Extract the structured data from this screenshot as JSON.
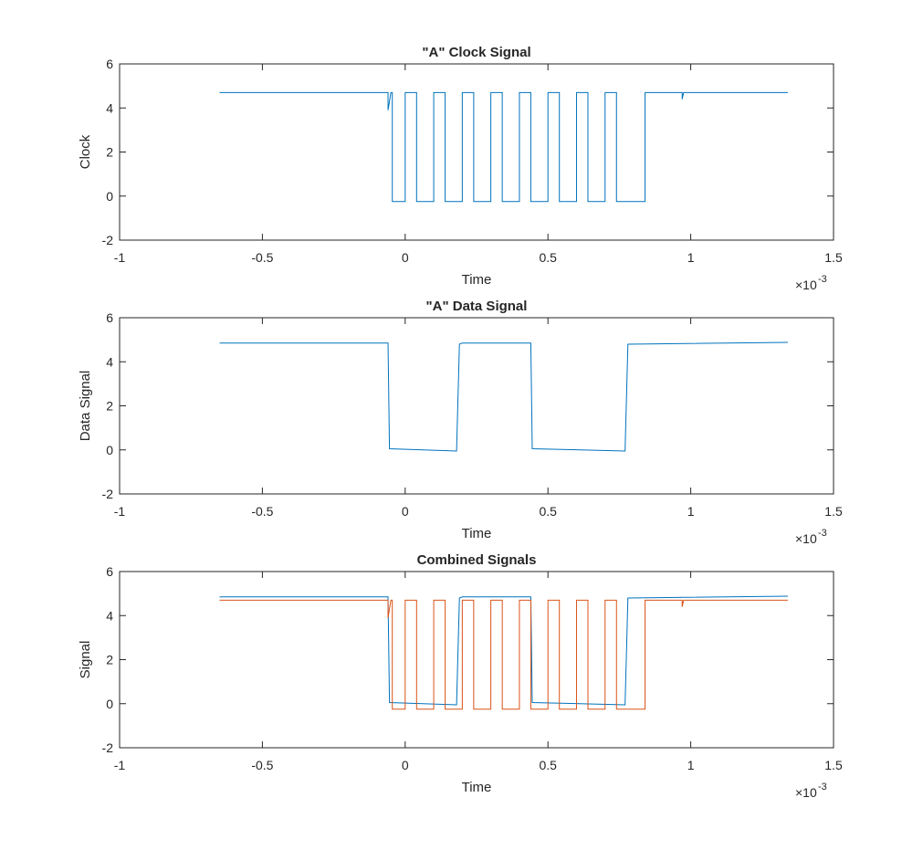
{
  "chart_data": [
    {
      "type": "line",
      "title": "\"A\" Clock Signal",
      "xlabel": "Time",
      "ylabel": "Clock",
      "x_scale": {
        "base": "×10",
        "exponent": "-3"
      },
      "xlim": [
        -1,
        1.5
      ],
      "ylim": [
        -2,
        6
      ],
      "xticks": [
        -1,
        -0.5,
        0,
        0.5,
        1,
        1.5
      ],
      "yticks": [
        -2,
        0,
        2,
        4,
        6
      ],
      "series": [
        {
          "color": "#0072bd",
          "x": [
            -0.65,
            -0.06,
            -0.06,
            -0.05,
            -0.045,
            -0.045,
            0,
            0,
            0.04,
            0.04,
            0.1,
            0.1,
            0.14,
            0.14,
            0.2,
            0.2,
            0.24,
            0.24,
            0.3,
            0.3,
            0.34,
            0.34,
            0.4,
            0.4,
            0.44,
            0.44,
            0.5,
            0.5,
            0.54,
            0.54,
            0.6,
            0.6,
            0.64,
            0.64,
            0.7,
            0.7,
            0.74,
            0.74,
            0.84,
            0.84,
            0.97,
            0.97,
            0.975,
            1.34
          ],
          "values": [
            4.7,
            4.7,
            3.9,
            4.7,
            4.7,
            -0.25,
            -0.25,
            4.7,
            4.7,
            -0.25,
            -0.25,
            4.7,
            4.7,
            -0.25,
            -0.25,
            4.7,
            4.7,
            -0.25,
            -0.25,
            4.7,
            4.7,
            -0.25,
            -0.25,
            4.7,
            4.7,
            -0.25,
            -0.25,
            4.7,
            4.7,
            -0.25,
            -0.25,
            4.7,
            4.7,
            -0.25,
            -0.25,
            4.7,
            4.7,
            -0.25,
            -0.25,
            4.7,
            4.7,
            4.4,
            4.7,
            4.7
          ]
        }
      ]
    },
    {
      "type": "line",
      "title": "\"A\" Data Signal",
      "xlabel": "Time",
      "ylabel": "Data Signal",
      "x_scale": {
        "base": "×10",
        "exponent": "-3"
      },
      "xlim": [
        -1,
        1.5
      ],
      "ylim": [
        -2,
        6
      ],
      "xticks": [
        -1,
        -0.5,
        0,
        0.5,
        1,
        1.5
      ],
      "yticks": [
        -2,
        0,
        2,
        4,
        6
      ],
      "series": [
        {
          "color": "#0072bd",
          "x": [
            -0.65,
            -0.06,
            -0.055,
            0.18,
            0.19,
            0.2,
            0.44,
            0.445,
            0.77,
            0.78,
            1.34
          ],
          "values": [
            4.85,
            4.85,
            0.05,
            -0.05,
            4.8,
            4.85,
            4.85,
            0.05,
            -0.05,
            4.8,
            4.88
          ]
        }
      ]
    },
    {
      "type": "line",
      "title": "Combined Signals",
      "xlabel": "Time",
      "ylabel": "Signal",
      "x_scale": {
        "base": "×10",
        "exponent": "-3"
      },
      "xlim": [
        -1,
        1.5
      ],
      "ylim": [
        -2,
        6
      ],
      "xticks": [
        -1,
        -0.5,
        0,
        0.5,
        1,
        1.5
      ],
      "yticks": [
        -2,
        0,
        2,
        4,
        6
      ],
      "series": [
        {
          "color": "#0072bd",
          "x": [
            -0.65,
            -0.06,
            -0.055,
            0.18,
            0.19,
            0.2,
            0.44,
            0.445,
            0.77,
            0.78,
            1.34
          ],
          "values": [
            4.85,
            4.85,
            0.05,
            -0.05,
            4.8,
            4.85,
            4.85,
            0.05,
            -0.05,
            4.8,
            4.88
          ]
        },
        {
          "color": "#d95319",
          "x": [
            -0.65,
            -0.06,
            -0.06,
            -0.05,
            -0.045,
            -0.045,
            0,
            0,
            0.04,
            0.04,
            0.1,
            0.1,
            0.14,
            0.14,
            0.2,
            0.2,
            0.24,
            0.24,
            0.3,
            0.3,
            0.34,
            0.34,
            0.4,
            0.4,
            0.44,
            0.44,
            0.5,
            0.5,
            0.54,
            0.54,
            0.6,
            0.6,
            0.64,
            0.64,
            0.7,
            0.7,
            0.74,
            0.74,
            0.84,
            0.84,
            0.97,
            0.97,
            0.975,
            1.34
          ],
          "values": [
            4.7,
            4.7,
            3.9,
            4.7,
            4.7,
            -0.25,
            -0.25,
            4.7,
            4.7,
            -0.25,
            -0.25,
            4.7,
            4.7,
            -0.25,
            -0.25,
            4.7,
            4.7,
            -0.25,
            -0.25,
            4.7,
            4.7,
            -0.25,
            -0.25,
            4.7,
            4.7,
            -0.25,
            -0.25,
            4.7,
            4.7,
            -0.25,
            -0.25,
            4.7,
            4.7,
            -0.25,
            -0.25,
            4.7,
            4.7,
            -0.25,
            -0.25,
            4.7,
            4.7,
            4.4,
            4.7,
            4.7
          ]
        }
      ]
    }
  ]
}
